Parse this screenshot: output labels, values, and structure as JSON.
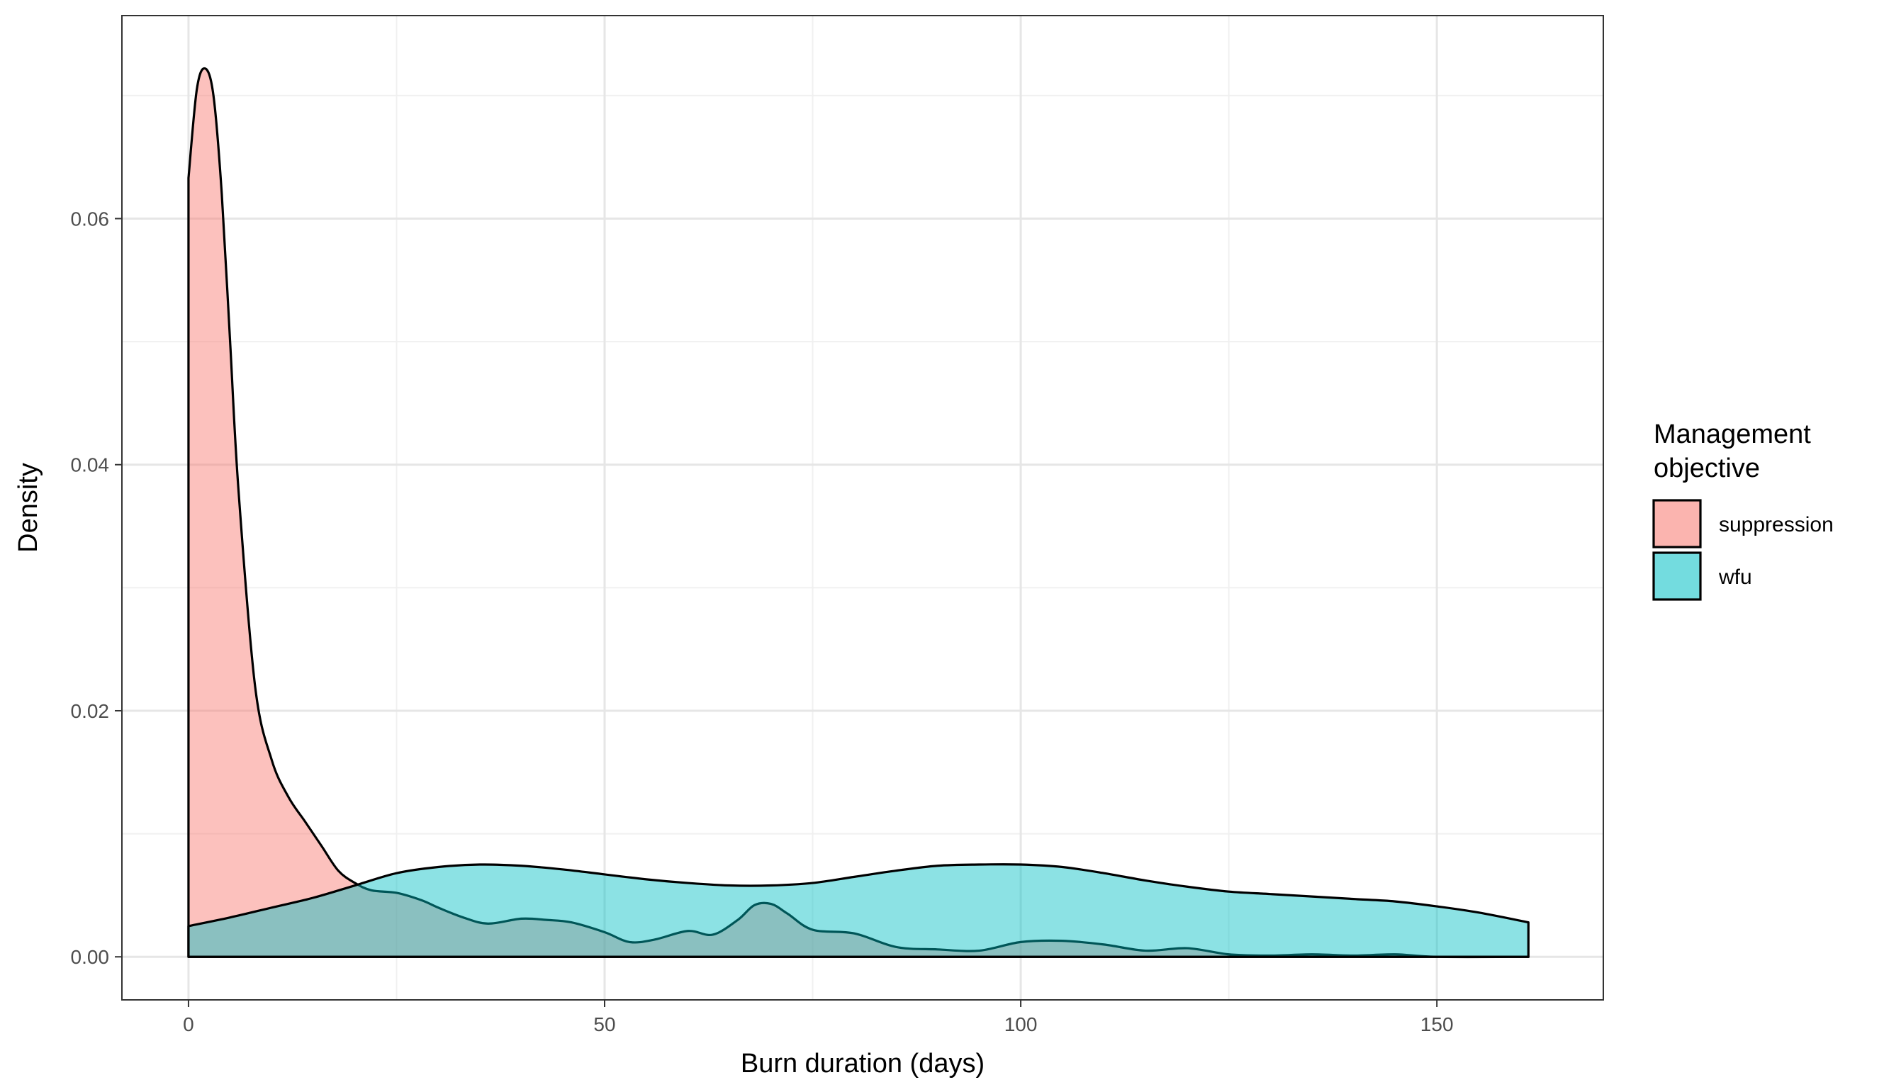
{
  "chart_data": {
    "type": "area",
    "xlabel": "Burn duration (days)",
    "ylabel": "Density",
    "xlim": [
      -8,
      170
    ],
    "ylim": [
      -0.0035,
      0.0765
    ],
    "xticks": [
      0,
      50,
      100,
      150
    ],
    "xtick_labels": [
      "0",
      "50",
      "100",
      "150"
    ],
    "yticks": [
      0.0,
      0.02,
      0.04,
      0.06
    ],
    "ytick_labels": [
      "0.00",
      "0.02",
      "0.04",
      "0.06"
    ],
    "grid": true,
    "legend": {
      "title_lines": [
        "Management",
        "objective"
      ],
      "position": "right"
    },
    "series": [
      {
        "name": "suppression",
        "color": "#F8766D",
        "x": [
          0,
          1,
          2,
          3,
          4,
          5,
          6,
          8,
          10,
          12,
          14,
          16,
          18,
          20,
          22,
          25,
          28,
          30,
          33,
          36,
          40,
          43,
          46,
          50,
          53,
          56,
          60,
          63,
          66,
          68,
          70,
          72,
          75,
          80,
          85,
          90,
          95,
          100,
          105,
          110,
          115,
          120,
          125,
          130,
          135,
          140,
          145,
          150,
          161
        ],
        "values": [
          0.0633,
          0.0705,
          0.0722,
          0.07,
          0.062,
          0.05,
          0.038,
          0.022,
          0.016,
          0.013,
          0.011,
          0.009,
          0.007,
          0.006,
          0.0054,
          0.0052,
          0.0046,
          0.004,
          0.0032,
          0.0027,
          0.0031,
          0.003,
          0.0028,
          0.002,
          0.0012,
          0.0014,
          0.0021,
          0.0018,
          0.003,
          0.0042,
          0.0043,
          0.0035,
          0.0022,
          0.0019,
          0.0008,
          0.0006,
          0.0005,
          0.0012,
          0.0013,
          0.001,
          0.0005,
          0.0007,
          0.0002,
          0.0001,
          0.0002,
          0.0001,
          0.0002,
          0.0,
          0.0
        ]
      },
      {
        "name": "wfu",
        "color": "#00BFC4",
        "x": [
          0,
          5,
          10,
          15,
          20,
          25,
          30,
          35,
          40,
          45,
          50,
          55,
          60,
          65,
          70,
          75,
          80,
          85,
          90,
          95,
          100,
          105,
          110,
          115,
          120,
          125,
          130,
          135,
          140,
          145,
          150,
          155,
          161
        ],
        "values": [
          0.0025,
          0.0032,
          0.004,
          0.0048,
          0.0058,
          0.0068,
          0.0073,
          0.0075,
          0.0074,
          0.0071,
          0.0067,
          0.0063,
          0.006,
          0.0058,
          0.0058,
          0.006,
          0.0065,
          0.007,
          0.0074,
          0.0075,
          0.0075,
          0.0073,
          0.0068,
          0.0062,
          0.0057,
          0.0053,
          0.0051,
          0.0049,
          0.0047,
          0.0045,
          0.0041,
          0.0036,
          0.0028
        ]
      }
    ]
  }
}
